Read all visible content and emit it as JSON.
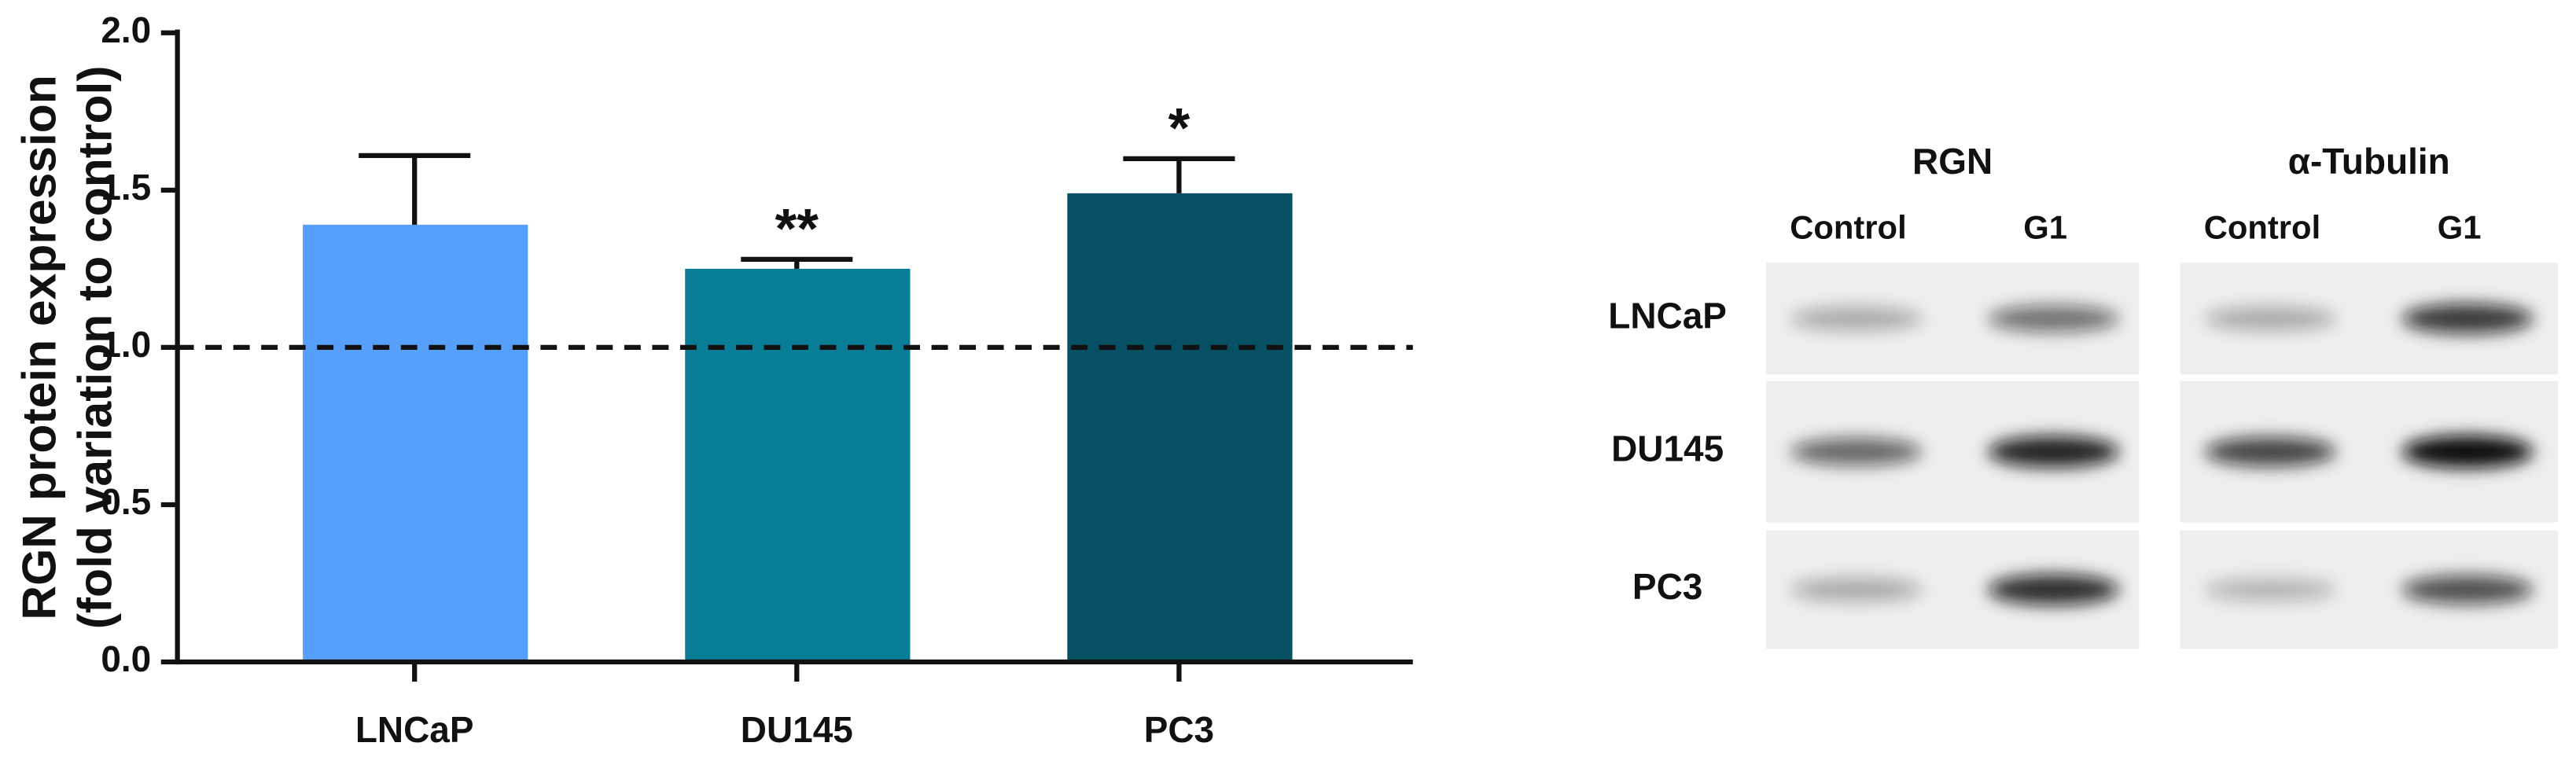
{
  "chart_data": {
    "type": "bar",
    "y_label": [
      "RGN protein expression",
      "(fold variation to control)"
    ],
    "categories": [
      "LNCaP",
      "DU145",
      "PC3"
    ],
    "values": [
      1.39,
      1.25,
      1.49
    ],
    "errors": [
      0.22,
      0.03,
      0.11
    ],
    "colors": [
      "#56a0fb",
      "#0a7d96",
      "#074f63"
    ],
    "annotations": [
      null,
      "**",
      "*"
    ],
    "reference_line": 1.0,
    "ylim": [
      0,
      2
    ],
    "yticks": [
      {
        "value": 0,
        "label": "0.0"
      },
      0.5,
      {
        "value": 1,
        "label": "1.0"
      },
      1.5,
      {
        "value": 2,
        "label": "2.0"
      }
    ]
  },
  "blot": {
    "panels": [
      {
        "title": "RGN",
        "columns": [
          "Control",
          "G1"
        ]
      },
      {
        "title": "α-Tubulin",
        "columns": [
          "Control",
          "G1"
        ]
      }
    ],
    "rows": [
      "LNCaP",
      "DU145",
      "PC3"
    ]
  }
}
